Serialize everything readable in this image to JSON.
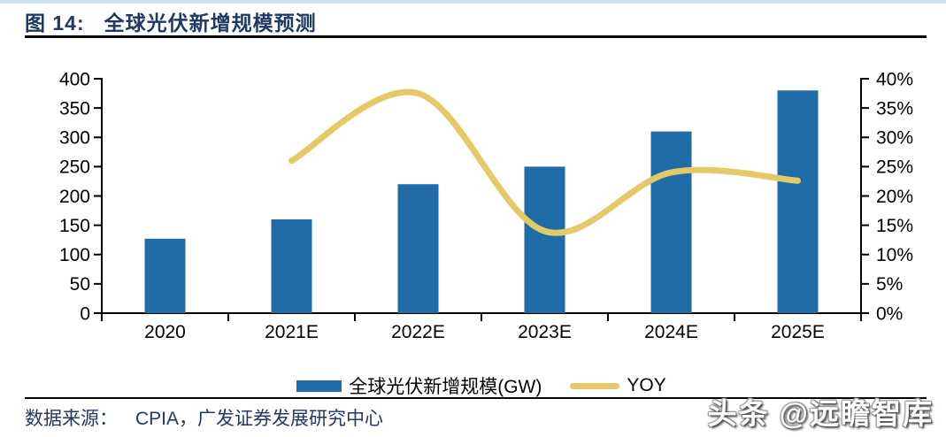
{
  "header": {
    "figure_label": "图 14:",
    "title": "全球光伏新增规模预测"
  },
  "chart_data": {
    "type": "bar",
    "title": "全球光伏新增规模预测",
    "categories": [
      "2020",
      "2021E",
      "2022E",
      "2023E",
      "2024E",
      "2025E"
    ],
    "series": [
      {
        "name": "全球光伏新增规模(GW)",
        "chart": "bar",
        "axis": "left",
        "color": "#1F6CA8",
        "values": [
          127,
          160,
          220,
          250,
          310,
          380
        ]
      },
      {
        "name": "YOY",
        "chart": "line",
        "axis": "right",
        "color": "#E5C968",
        "unit": "%",
        "values": [
          null,
          26,
          37.5,
          14,
          24,
          22.6
        ]
      }
    ],
    "left_axis": {
      "min": 0,
      "max": 400,
      "step": 50,
      "tick_labels": [
        "400",
        "350",
        "300",
        "250",
        "200",
        "150",
        "100",
        "50",
        "0"
      ]
    },
    "right_axis": {
      "min": 0,
      "max": 40,
      "step": 5,
      "tick_labels": [
        "40%",
        "35%",
        "30%",
        "25%",
        "20%",
        "15%",
        "10%",
        "5%",
        "0%"
      ]
    },
    "grid": false,
    "legend_position": "bottom"
  },
  "legend": {
    "items": [
      {
        "label": "全球光伏新增规模(GW)",
        "swatch": "bar",
        "color": "#1F6CA8"
      },
      {
        "label": "YOY",
        "swatch": "line",
        "color": "#E5C968"
      }
    ]
  },
  "footer": {
    "source_label": "数据来源：",
    "source_text": "CPIA，广发证券发展研究中心"
  },
  "watermark": {
    "text": "头条 @远瞻智库"
  },
  "colors": {
    "title_navy": "#1F3864",
    "bar_blue": "#1F6CA8",
    "line_yellow": "#E5C968",
    "top_strip": "#CFE2F3",
    "rule_black": "#000000"
  }
}
